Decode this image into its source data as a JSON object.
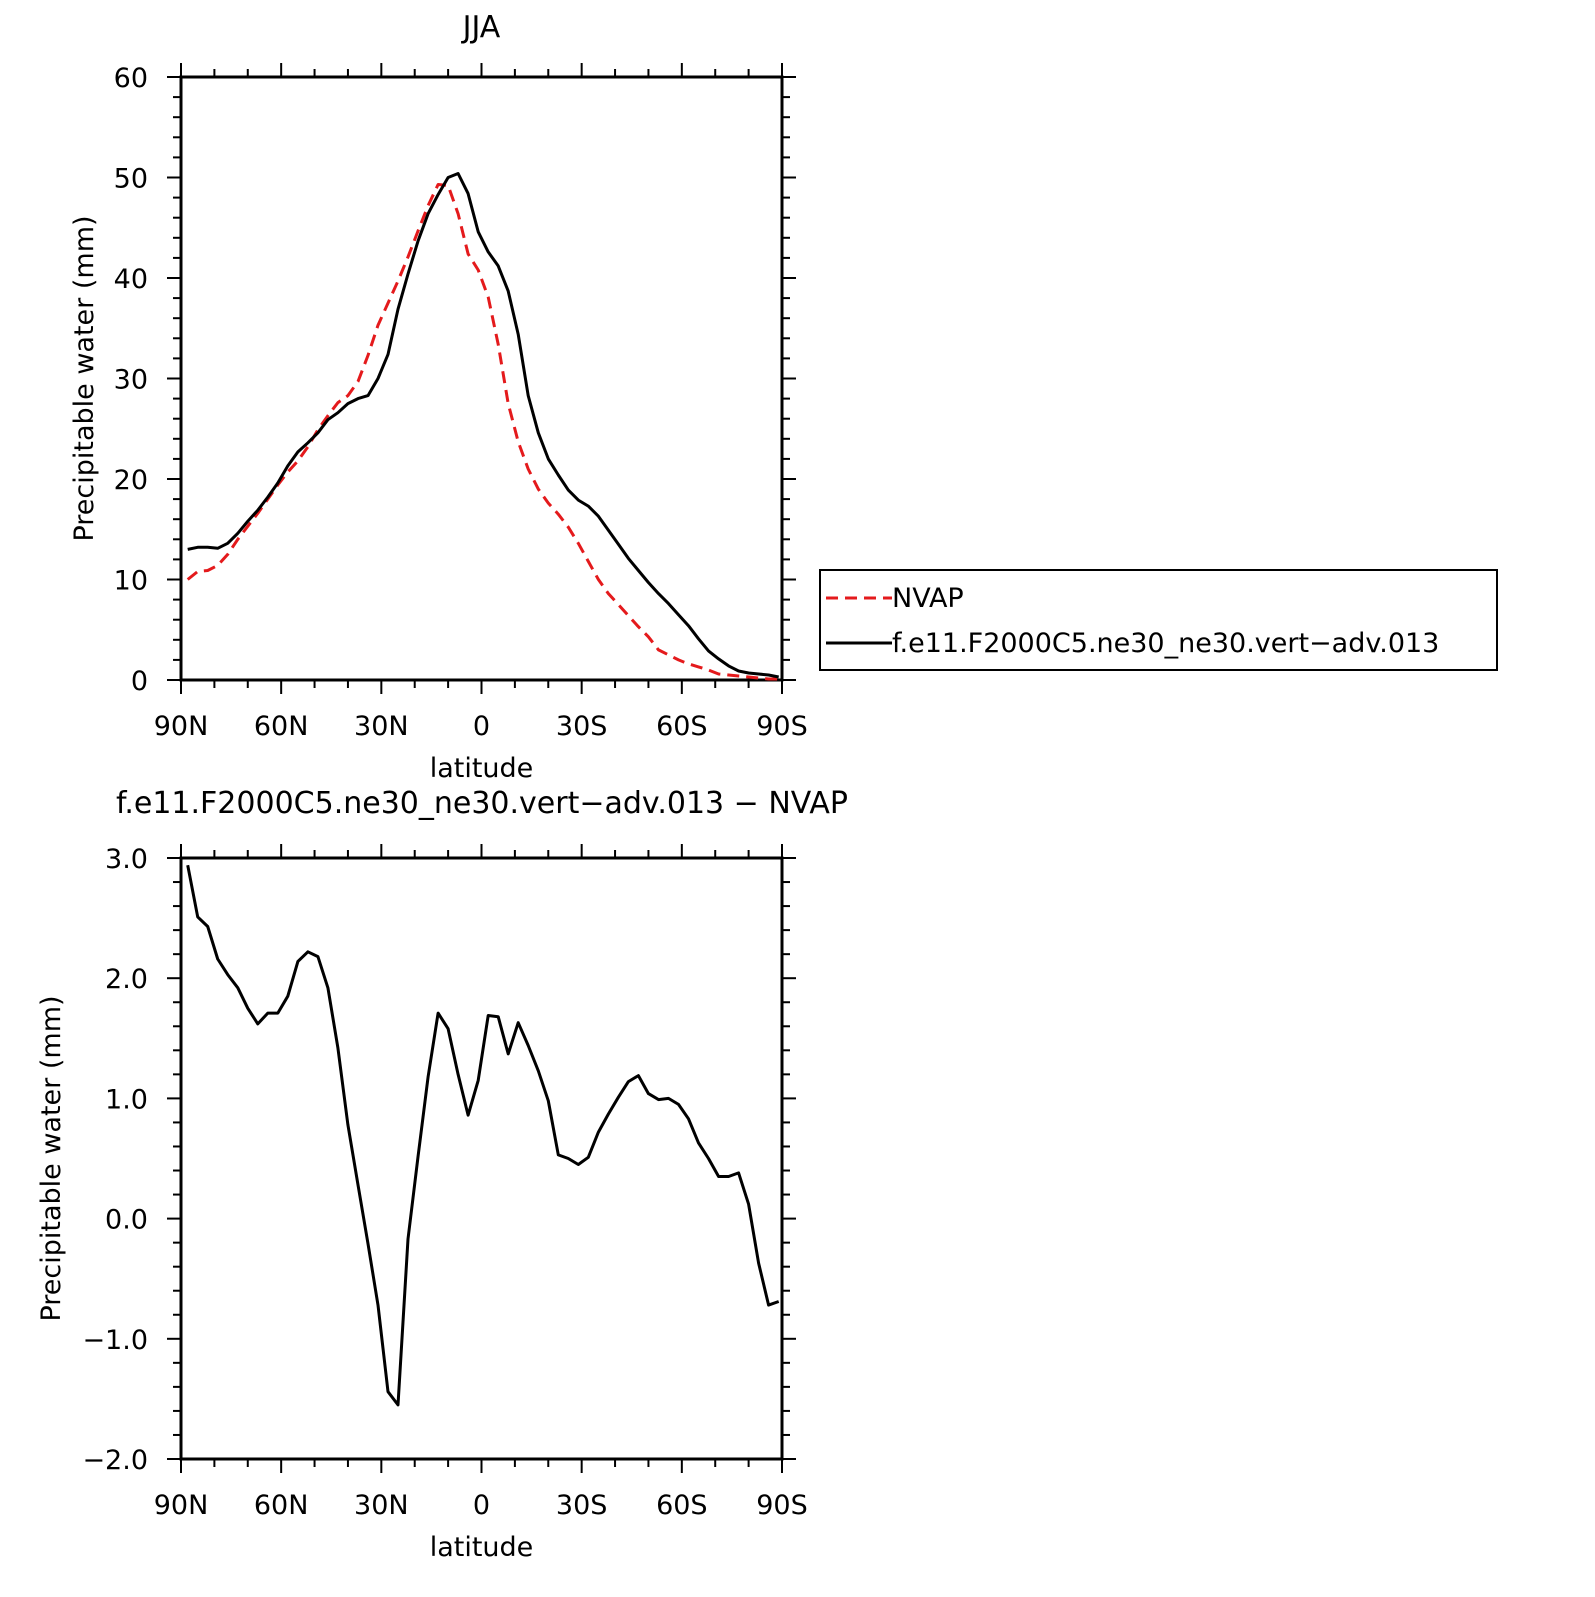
{
  "chart_data": [
    {
      "type": "line",
      "title": "JJA",
      "xlabel": "latitude",
      "ylabel": "Precipitable water (mm)",
      "xlim": [
        90,
        -90
      ],
      "ylim": [
        0,
        60
      ],
      "x_ticks": [
        {
          "value": 90,
          "label": "90N"
        },
        {
          "value": 60,
          "label": "60N"
        },
        {
          "value": 30,
          "label": "30N"
        },
        {
          "value": 0,
          "label": "0"
        },
        {
          "value": -30,
          "label": "30S"
        },
        {
          "value": -60,
          "label": "60S"
        },
        {
          "value": -90,
          "label": "90S"
        }
      ],
      "y_ticks": [
        {
          "value": 0,
          "label": "0"
        },
        {
          "value": 10,
          "label": "10"
        },
        {
          "value": 20,
          "label": "20"
        },
        {
          "value": 30,
          "label": "30"
        },
        {
          "value": 40,
          "label": "40"
        },
        {
          "value": 50,
          "label": "50"
        },
        {
          "value": 60,
          "label": "60"
        }
      ],
      "grid": false,
      "legend_position": "right",
      "series": [
        {
          "name": "NVAP",
          "color": "#e41a1c",
          "style": "dashed",
          "x": [
            88,
            85,
            82,
            79,
            76,
            73,
            70,
            67,
            64,
            61,
            58,
            55,
            52,
            49,
            46,
            43,
            40,
            37,
            34,
            31,
            28,
            25,
            22,
            19,
            16,
            13,
            10,
            7,
            4,
            1,
            -2,
            -5,
            -8,
            -11,
            -14,
            -17,
            -20,
            -23,
            -26,
            -29,
            -32,
            -35,
            -38,
            -41,
            -44,
            -47,
            -50,
            -53,
            -56,
            -59,
            -62,
            -65,
            -68,
            -71,
            -74,
            -77,
            -80,
            -83,
            -86,
            -89
          ],
          "y": [
            10.0,
            10.8,
            10.9,
            11.4,
            12.5,
            14.0,
            15.3,
            16.6,
            18.0,
            19.4,
            20.7,
            21.8,
            23.2,
            24.9,
            26.3,
            27.6,
            28.3,
            29.7,
            32.3,
            35.3,
            37.5,
            39.7,
            42.1,
            44.7,
            47.2,
            49.3,
            49.2,
            46.4,
            42.4,
            40.8,
            38.1,
            33.4,
            27.5,
            23.7,
            21.0,
            19.0,
            17.6,
            16.5,
            15.2,
            13.6,
            11.8,
            10.0,
            8.6,
            7.5,
            6.4,
            5.3,
            4.3,
            3.0,
            2.5,
            2.0,
            1.6,
            1.3,
            1.0,
            0.6,
            0.5,
            0.4,
            0.3,
            0.2,
            0.1,
            0.1
          ]
        },
        {
          "name": "f.e11.F2000C5.ne30_ne30.vert−adv.013",
          "color": "#000000",
          "style": "solid",
          "x": [
            88,
            85,
            82,
            79,
            76,
            73,
            70,
            67,
            64,
            61,
            58,
            55,
            52,
            49,
            46,
            43,
            40,
            37,
            34,
            31,
            28,
            25,
            22,
            19,
            16,
            13,
            10,
            7,
            4,
            1,
            -2,
            -5,
            -8,
            -11,
            -14,
            -17,
            -20,
            -23,
            -26,
            -29,
            -32,
            -35,
            -38,
            -41,
            -44,
            -47,
            -50,
            -53,
            -56,
            -59,
            -62,
            -65,
            -68,
            -71,
            -74,
            -77,
            -80,
            -83,
            -86,
            -89
          ],
          "y": [
            13.0,
            13.2,
            13.2,
            13.1,
            13.6,
            14.6,
            15.8,
            16.9,
            18.2,
            19.6,
            21.3,
            22.7,
            23.6,
            24.6,
            25.9,
            26.6,
            27.5,
            28.0,
            28.3,
            30.0,
            32.4,
            36.9,
            40.4,
            43.7,
            46.4,
            48.3,
            50.0,
            50.4,
            48.4,
            44.6,
            42.6,
            41.2,
            38.7,
            34.4,
            28.3,
            24.6,
            22.0,
            20.4,
            18.9,
            17.9,
            17.3,
            16.3,
            14.9,
            13.5,
            12.1,
            10.9,
            9.7,
            8.6,
            7.6,
            6.5,
            5.4,
            4.1,
            2.9,
            2.1,
            1.4,
            0.9,
            0.7,
            0.6,
            0.5,
            0.3
          ]
        }
      ]
    },
    {
      "type": "line",
      "title": "f.e11.F2000C5.ne30_ne30.vert−adv.013 − NVAP",
      "xlabel": "latitude",
      "ylabel": "Precipitable water (mm)",
      "xlim": [
        90,
        -90
      ],
      "ylim": [
        -2.0,
        3.0
      ],
      "x_ticks": [
        {
          "value": 90,
          "label": "90N"
        },
        {
          "value": 60,
          "label": "60N"
        },
        {
          "value": 30,
          "label": "30N"
        },
        {
          "value": 0,
          "label": "0"
        },
        {
          "value": -30,
          "label": "30S"
        },
        {
          "value": -60,
          "label": "60S"
        },
        {
          "value": -90,
          "label": "90S"
        }
      ],
      "y_ticks": [
        {
          "value": -2.0,
          "label": "−2.0"
        },
        {
          "value": -1.0,
          "label": "−1.0"
        },
        {
          "value": 0.0,
          "label": "0.0"
        },
        {
          "value": 1.0,
          "label": "1.0"
        },
        {
          "value": 2.0,
          "label": "2.0"
        },
        {
          "value": 3.0,
          "label": "3.0"
        }
      ],
      "grid": false,
      "series": [
        {
          "color": "#000000",
          "style": "solid",
          "x": [
            88,
            85,
            82,
            79,
            76,
            73,
            70,
            67,
            64,
            61,
            58,
            55,
            52,
            49,
            46,
            43,
            40,
            37,
            34,
            31,
            28,
            25,
            22,
            19,
            16,
            13,
            10,
            7,
            4,
            1,
            -2,
            -5,
            -8,
            -11,
            -14,
            -17,
            -20,
            -23,
            -26,
            -29,
            -32,
            -35,
            -38,
            -41,
            -44,
            -47,
            -50,
            -53,
            -56,
            -59,
            -62,
            -65,
            -68,
            -71,
            -74,
            -77,
            -80,
            -83,
            -86,
            -89
          ],
          "y": [
            2.94,
            2.51,
            2.43,
            2.16,
            2.03,
            1.92,
            1.75,
            1.62,
            1.71,
            1.71,
            1.85,
            2.14,
            2.22,
            2.18,
            1.92,
            1.42,
            0.78,
            0.28,
            -0.21,
            -0.72,
            -1.44,
            -1.55,
            -0.17,
            0.52,
            1.18,
            1.71,
            1.58,
            1.2,
            0.86,
            1.15,
            1.69,
            1.68,
            1.37,
            1.63,
            1.44,
            1.23,
            0.98,
            0.53,
            0.5,
            0.45,
            0.51,
            0.72,
            0.87,
            1.01,
            1.14,
            1.19,
            1.04,
            0.99,
            1.0,
            0.95,
            0.83,
            0.63,
            0.5,
            0.35,
            0.35,
            0.38,
            0.12,
            -0.37,
            -0.72,
            -0.69
          ]
        }
      ]
    }
  ]
}
